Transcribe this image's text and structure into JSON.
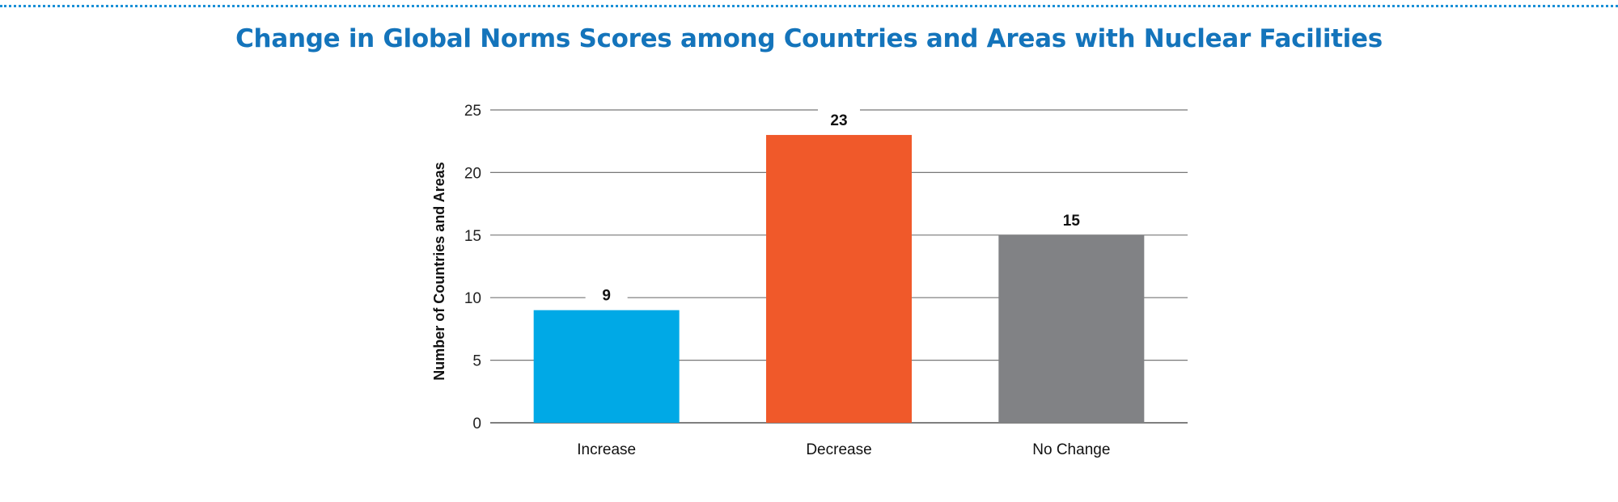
{
  "chart_data": {
    "type": "bar",
    "title": "Change in Global Norms Scores among Countries and Areas with Nuclear Facilities",
    "xlabel": "",
    "ylabel": "Number of Countries and Areas",
    "categories": [
      "Increase",
      "Decrease",
      "No Change"
    ],
    "values": [
      9,
      23,
      15
    ],
    "data_labels": [
      "9",
      "23",
      "15"
    ],
    "bar_colors": [
      "#00a9e6",
      "#f0592a",
      "#818285"
    ],
    "ylim": [
      0,
      25
    ],
    "yticks": [
      0,
      5,
      10,
      15,
      20,
      25
    ],
    "ytick_labels": [
      "0",
      "5",
      "10",
      "15",
      "20",
      "25"
    ],
    "grid": true,
    "legend": "none"
  },
  "colors": {
    "title": "#1474bb",
    "rule": "#1a8fd6",
    "gridline": "#777777"
  }
}
